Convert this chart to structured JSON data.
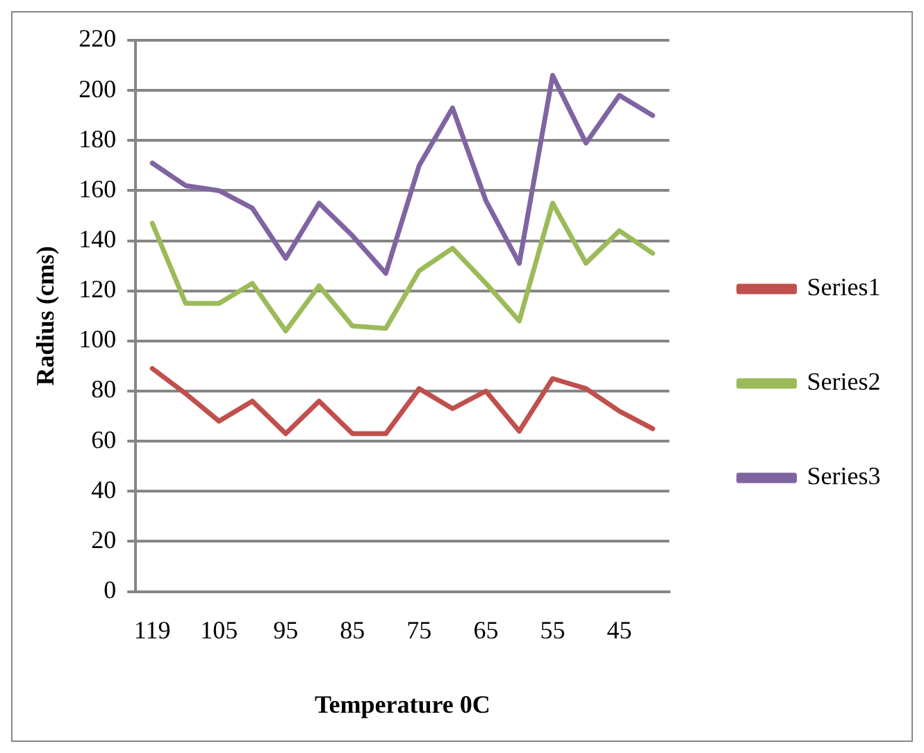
{
  "chart_data": {
    "type": "line",
    "xlabel": "Temperature 0C",
    "ylabel": "Radius (cms)",
    "categories": [
      "119",
      null,
      "105",
      null,
      "95",
      null,
      "85",
      null,
      "75",
      null,
      "65",
      null,
      "55",
      null,
      "45",
      null
    ],
    "series": [
      {
        "name": "Series1",
        "color": "#c0504d",
        "values": [
          89,
          79,
          68,
          76,
          63,
          76,
          63,
          63,
          81,
          73,
          80,
          64,
          85,
          81,
          72,
          65
        ]
      },
      {
        "name": "Series2",
        "color": "#9bbb59",
        "values": [
          147,
          115,
          115,
          123,
          104,
          122,
          106,
          105,
          128,
          137,
          123,
          108,
          155,
          131,
          144,
          135
        ]
      },
      {
        "name": "Series3",
        "color": "#8064a2",
        "values": [
          171,
          162,
          160,
          153,
          133,
          155,
          142,
          127,
          170,
          193,
          156,
          131,
          206,
          179,
          198,
          190
        ]
      }
    ],
    "ylim": [
      0,
      220
    ],
    "yticks": [
      0,
      20,
      40,
      60,
      80,
      100,
      120,
      140,
      160,
      180,
      200,
      220
    ],
    "grid": "y",
    "legend": "right",
    "marker": "none",
    "line_style": "solid"
  }
}
